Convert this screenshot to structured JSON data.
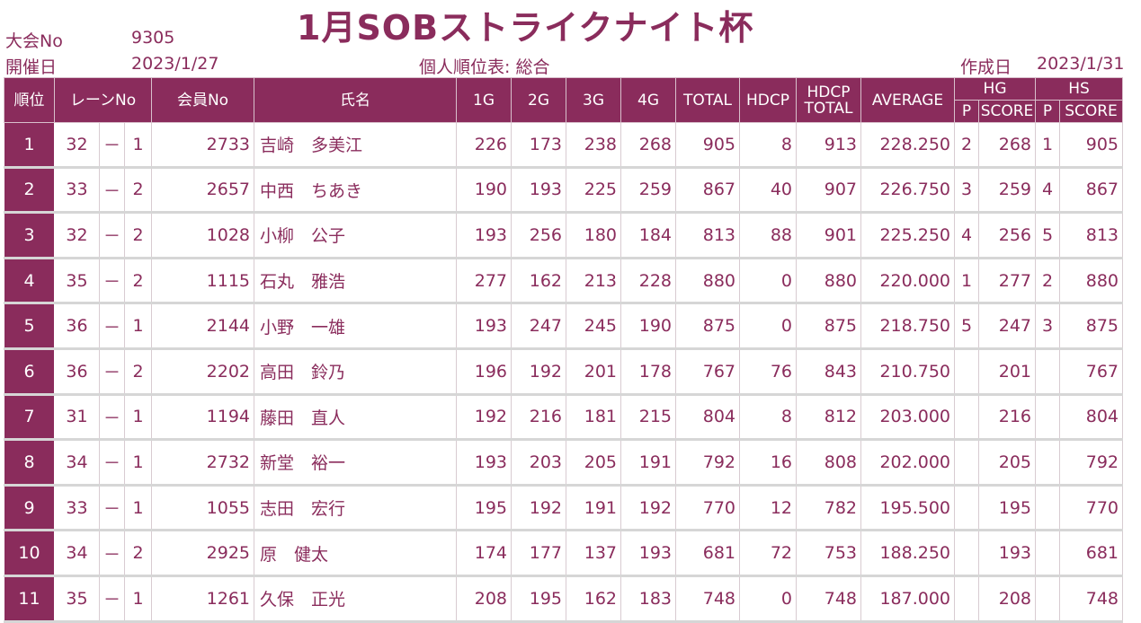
{
  "header": {
    "tournament_label": "大会No",
    "tournament_no": "9305",
    "date_label": "開催日",
    "date": "2023/1/27",
    "title": "1月SOBストライクナイト杯",
    "subtitle": "個人順位表: 総合",
    "created_label": "作成日",
    "created_date": "2023/1/31"
  },
  "columns": {
    "rank": "順位",
    "lane": "レーンNo",
    "member": "会員No",
    "name": "氏名",
    "g1": "1G",
    "g2": "2G",
    "g3": "3G",
    "g4": "4G",
    "total": "TOTAL",
    "hdcp": "HDCP",
    "hdcp_total_1": "HDCP",
    "hdcp_total_2": "TOTAL",
    "average": "AVERAGE",
    "hg": "HG",
    "hs": "HS",
    "p": "P",
    "score": "SCORE"
  },
  "rows": [
    {
      "rank": "1",
      "lane": "32",
      "dash": "－",
      "sub": "1",
      "member": "2733",
      "name": "吉崎　多美江",
      "g1": "226",
      "g2": "173",
      "g3": "238",
      "g4": "268",
      "total": "905",
      "hdcp": "8",
      "hdcp_total": "913",
      "average": "228.250",
      "hg_p": "2",
      "hg_score": "268",
      "hs_p": "1",
      "hs_score": "905"
    },
    {
      "rank": "2",
      "lane": "33",
      "dash": "－",
      "sub": "2",
      "member": "2657",
      "name": "中西　ちあき",
      "g1": "190",
      "g2": "193",
      "g3": "225",
      "g4": "259",
      "total": "867",
      "hdcp": "40",
      "hdcp_total": "907",
      "average": "226.750",
      "hg_p": "3",
      "hg_score": "259",
      "hs_p": "4",
      "hs_score": "867"
    },
    {
      "rank": "3",
      "lane": "32",
      "dash": "－",
      "sub": "2",
      "member": "1028",
      "name": "小柳　公子",
      "g1": "193",
      "g2": "256",
      "g3": "180",
      "g4": "184",
      "total": "813",
      "hdcp": "88",
      "hdcp_total": "901",
      "average": "225.250",
      "hg_p": "4",
      "hg_score": "256",
      "hs_p": "5",
      "hs_score": "813"
    },
    {
      "rank": "4",
      "lane": "35",
      "dash": "－",
      "sub": "2",
      "member": "1115",
      "name": "石丸　雅浩",
      "g1": "277",
      "g2": "162",
      "g3": "213",
      "g4": "228",
      "total": "880",
      "hdcp": "0",
      "hdcp_total": "880",
      "average": "220.000",
      "hg_p": "1",
      "hg_score": "277",
      "hs_p": "2",
      "hs_score": "880"
    },
    {
      "rank": "5",
      "lane": "36",
      "dash": "－",
      "sub": "1",
      "member": "2144",
      "name": "小野　一雄",
      "g1": "193",
      "g2": "247",
      "g3": "245",
      "g4": "190",
      "total": "875",
      "hdcp": "0",
      "hdcp_total": "875",
      "average": "218.750",
      "hg_p": "5",
      "hg_score": "247",
      "hs_p": "3",
      "hs_score": "875"
    },
    {
      "rank": "6",
      "lane": "36",
      "dash": "－",
      "sub": "2",
      "member": "2202",
      "name": "高田　鈴乃",
      "g1": "196",
      "g2": "192",
      "g3": "201",
      "g4": "178",
      "total": "767",
      "hdcp": "76",
      "hdcp_total": "843",
      "average": "210.750",
      "hg_p": "",
      "hg_score": "201",
      "hs_p": "",
      "hs_score": "767"
    },
    {
      "rank": "7",
      "lane": "31",
      "dash": "－",
      "sub": "1",
      "member": "1194",
      "name": "藤田　直人",
      "g1": "192",
      "g2": "216",
      "g3": "181",
      "g4": "215",
      "total": "804",
      "hdcp": "8",
      "hdcp_total": "812",
      "average": "203.000",
      "hg_p": "",
      "hg_score": "216",
      "hs_p": "",
      "hs_score": "804"
    },
    {
      "rank": "8",
      "lane": "34",
      "dash": "－",
      "sub": "1",
      "member": "2732",
      "name": "新堂　裕一",
      "g1": "193",
      "g2": "203",
      "g3": "205",
      "g4": "191",
      "total": "792",
      "hdcp": "16",
      "hdcp_total": "808",
      "average": "202.000",
      "hg_p": "",
      "hg_score": "205",
      "hs_p": "",
      "hs_score": "792"
    },
    {
      "rank": "9",
      "lane": "33",
      "dash": "－",
      "sub": "1",
      "member": "1055",
      "name": "志田　宏行",
      "g1": "195",
      "g2": "192",
      "g3": "191",
      "g4": "192",
      "total": "770",
      "hdcp": "12",
      "hdcp_total": "782",
      "average": "195.500",
      "hg_p": "",
      "hg_score": "195",
      "hs_p": "",
      "hs_score": "770"
    },
    {
      "rank": "10",
      "lane": "34",
      "dash": "－",
      "sub": "2",
      "member": "2925",
      "name": "原　健太",
      "g1": "174",
      "g2": "177",
      "g3": "137",
      "g4": "193",
      "total": "681",
      "hdcp": "72",
      "hdcp_total": "753",
      "average": "188.250",
      "hg_p": "",
      "hg_score": "193",
      "hs_p": "",
      "hs_score": "681"
    },
    {
      "rank": "11",
      "lane": "35",
      "dash": "－",
      "sub": "1",
      "member": "1261",
      "name": "久保　正光",
      "g1": "208",
      "g2": "195",
      "g3": "162",
      "g4": "183",
      "total": "748",
      "hdcp": "0",
      "hdcp_total": "748",
      "average": "187.000",
      "hg_p": "",
      "hg_score": "208",
      "hs_p": "",
      "hs_score": "748"
    }
  ],
  "colors": {
    "accent": "#8a2c5c",
    "header_text": "#ffffff"
  }
}
